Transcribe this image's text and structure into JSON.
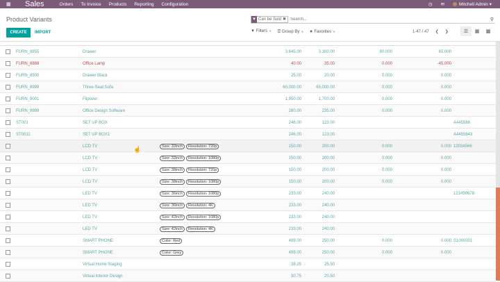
{
  "navbar": {
    "apps_icon": "grid-icon",
    "brand": "Sales",
    "menu": [
      "Orders",
      "To Invoice",
      "Products",
      "Reporting",
      "Configuration"
    ],
    "activity_icon": "clock-icon",
    "chat_icon": "chat-icon",
    "user": "Mitchell Admin"
  },
  "control_panel": {
    "title": "Product Variants",
    "create_label": "CREATE",
    "import_label": "IMPORT",
    "search": {
      "facet_label": "Can be Sold",
      "placeholder": "Search..."
    },
    "filters_label": "Filters",
    "groupby_label": "Group By",
    "favorites_label": "Favorites",
    "pager": "1-47 / 47",
    "views": [
      "list",
      "kanban",
      "grid"
    ]
  },
  "colors": {
    "navbar": "#7c5a7a",
    "primary": "#00a09d",
    "link": "#5aa5a5",
    "danger": "#b44d4d",
    "scroll_thumb": "#e07c55"
  },
  "rows": [
    {
      "ref": "FURN_8855",
      "name": "Drawer",
      "attrs": [],
      "price": "3,645.00",
      "cost": "3,300.00",
      "onhand": "80.000",
      "forecast": "65.000",
      "barcode": ""
    },
    {
      "ref": "FURN_8888",
      "name": "Office Lamp",
      "attrs": [],
      "price": "40.00",
      "cost": "35.00",
      "onhand": "0.000",
      "forecast": "-45.000",
      "barcode": "",
      "red": true
    },
    {
      "ref": "FURN_8900",
      "name": "Drawer Black",
      "attrs": [],
      "price": "25.00",
      "cost": "20.00",
      "onhand": "0.000",
      "forecast": "0.000",
      "barcode": ""
    },
    {
      "ref": "FURN_8999",
      "name": "Three-Seat Sofa",
      "attrs": [],
      "price": "60,000.00",
      "cost": "65,000.00",
      "onhand": "0.000",
      "forecast": "0.000",
      "barcode": ""
    },
    {
      "ref": "FURN_9001",
      "name": "Flipover",
      "attrs": [],
      "price": "1,950.00",
      "cost": "1,700.00",
      "onhand": "0.000",
      "forecast": "0.000",
      "barcode": ""
    },
    {
      "ref": "FURN_9999",
      "name": "Office Design Software",
      "attrs": [],
      "price": "280.00",
      "cost": "235.00",
      "onhand": "0.000",
      "forecast": "0.000",
      "barcode": ""
    },
    {
      "ref": "ST001",
      "name": "SET UP BOX",
      "attrs": [],
      "price": "246.00",
      "cost": "123.00",
      "onhand": "",
      "forecast": "",
      "barcode": "A445566"
    },
    {
      "ref": "ST0011",
      "name": "SET UP BOX1",
      "attrs": [],
      "price": "246.00",
      "cost": "123.00",
      "onhand": "",
      "forecast": "",
      "barcode": "A4455643"
    },
    {
      "ref": "",
      "name": "LCD TV",
      "attrs": [
        "Size: 32inch",
        "Resolution: 720p"
      ],
      "price": "150.00",
      "cost": "200.00",
      "onhand": "0.000",
      "forecast": "0.000",
      "barcode": "12034566"
    },
    {
      "ref": "",
      "name": "LCD TV",
      "attrs": [
        "Size: 32inch",
        "Resolution: 1080p"
      ],
      "price": "150.00",
      "cost": "200.00",
      "onhand": "0.000",
      "forecast": "0.000",
      "barcode": ""
    },
    {
      "ref": "",
      "name": "LCD TV",
      "attrs": [
        "Size: 38inch",
        "Resolution: 720p"
      ],
      "price": "150.00",
      "cost": "200.00",
      "onhand": "0.000",
      "forecast": "0.000",
      "barcode": ""
    },
    {
      "ref": "",
      "name": "LCD TV",
      "attrs": [
        "Size: 38inch",
        "Resolution: 1080p"
      ],
      "price": "150.00",
      "cost": "200.00",
      "onhand": "0.000",
      "forecast": "0.000",
      "barcode": ""
    },
    {
      "ref": "",
      "name": "LED TV",
      "attrs": [
        "Size: 36inch",
        "Resolution: 1080p"
      ],
      "price": "233.00",
      "cost": "240.00",
      "onhand": "",
      "forecast": "",
      "barcode": "123450678"
    },
    {
      "ref": "",
      "name": "LED TV",
      "attrs": [
        "Size: 36inch",
        "Resolution: 4K"
      ],
      "price": "233.00",
      "cost": "240.00",
      "onhand": "",
      "forecast": "",
      "barcode": ""
    },
    {
      "ref": "",
      "name": "LED TV",
      "attrs": [
        "Size: 42inch",
        "Resolution: 1080p"
      ],
      "price": "233.00",
      "cost": "240.00",
      "onhand": "",
      "forecast": "",
      "barcode": ""
    },
    {
      "ref": "",
      "name": "LED TV",
      "attrs": [
        "Size: 42inch",
        "Resolution: 4K"
      ],
      "price": "233.00",
      "cost": "240.00",
      "onhand": "",
      "forecast": "",
      "barcode": ""
    },
    {
      "ref": "",
      "name": "SMART PHONE",
      "attrs": [
        "Color: Red"
      ],
      "price": "499.00",
      "cost": "250.00",
      "onhand": "0.000",
      "forecast": "0.000",
      "barcode": "S1000001"
    },
    {
      "ref": "",
      "name": "SMART PHONE",
      "attrs": [
        "Color: Grey"
      ],
      "price": "499.00",
      "cost": "250.00",
      "onhand": "0.000",
      "forecast": "0.000",
      "barcode": ""
    },
    {
      "ref": "",
      "name": "Virtual Home Staging",
      "attrs": [],
      "price": "38.25",
      "cost": "25.50",
      "onhand": "",
      "forecast": "",
      "barcode": ""
    },
    {
      "ref": "",
      "name": "Virtual Interior Design",
      "attrs": [],
      "price": "30.75",
      "cost": "20.50",
      "onhand": "",
      "forecast": "",
      "barcode": ""
    }
  ]
}
